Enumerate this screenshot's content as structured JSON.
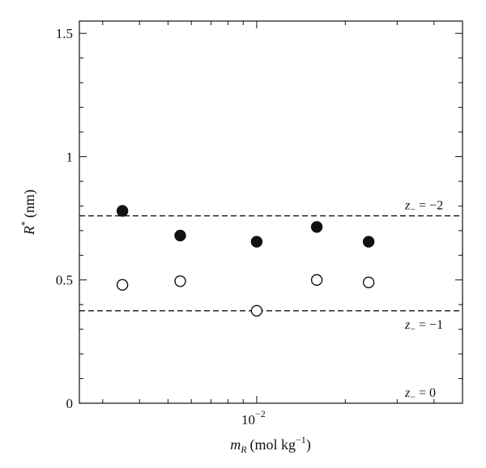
{
  "chart_data": {
    "type": "scatter",
    "xscale": "log",
    "x_tick_major": {
      "value": 0.01,
      "label_base": "10",
      "label_exp": "−2"
    },
    "xlabel": {
      "main": "m",
      "sub": "R",
      "unit": "(mol kg",
      "unit_exp": "−1",
      "unit_close": ")"
    },
    "ylabel": {
      "main": "R",
      "sup": "*",
      "unit": "(nm)"
    },
    "ylim": [
      0,
      1.55
    ],
    "yticks": [
      0,
      0.5,
      1,
      1.5
    ],
    "ytick_labels": [
      "0",
      "0.5",
      "1",
      "1.5"
    ],
    "xlim": [
      0.0025,
      0.05
    ],
    "series": [
      {
        "marker": "filled-circle",
        "x": [
          0.0035,
          0.0055,
          0.01,
          0.016,
          0.024
        ],
        "y": [
          0.78,
          0.68,
          0.655,
          0.715,
          0.655
        ]
      },
      {
        "marker": "open-circle",
        "x": [
          0.0035,
          0.0055,
          0.01,
          0.016,
          0.024
        ],
        "y": [
          0.48,
          0.495,
          0.375,
          0.5,
          0.49
        ]
      }
    ],
    "reference_lines": [
      {
        "y": 0.76,
        "style": "dashed",
        "label": "z",
        "label_sub": "−",
        "label_rest": " = −2"
      },
      {
        "y": 0.375,
        "style": "dashed",
        "label": "z",
        "label_sub": "−",
        "label_rest": " = −1"
      },
      {
        "y": 0.0,
        "style": "none",
        "label": "z",
        "label_sub": "−",
        "label_rest": " = 0"
      }
    ],
    "grid": false,
    "colors": {
      "ink": "#111111",
      "background": "#ffffff"
    }
  }
}
